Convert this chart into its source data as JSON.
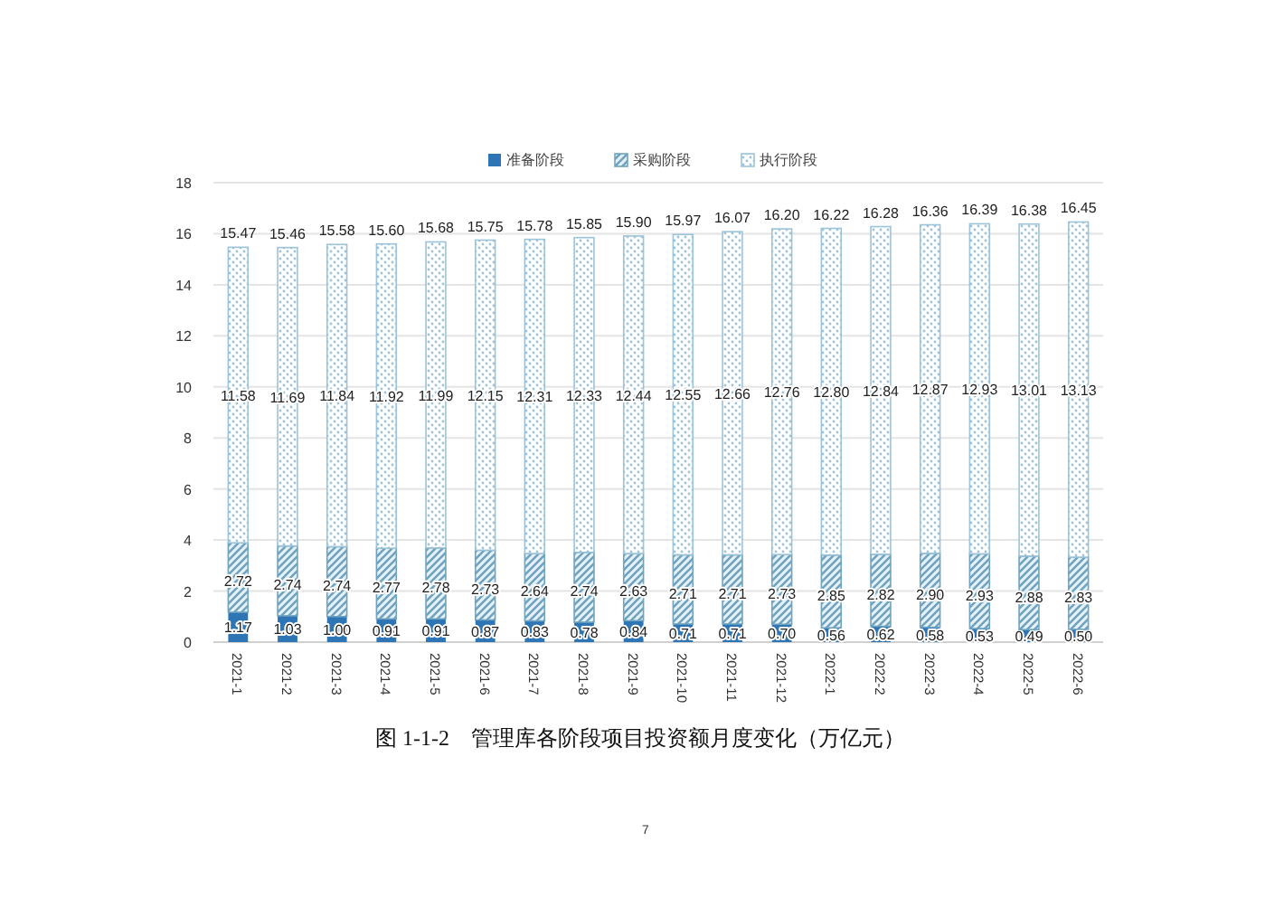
{
  "chart_data": {
    "type": "bar",
    "stacked": true,
    "title": "图 1-1-2　管理库各阶段项目投资额月度变化（万亿元）",
    "categories": [
      "2021-1",
      "2021-2",
      "2021-3",
      "2021-4",
      "2021-5",
      "2021-6",
      "2021-7",
      "2021-8",
      "2021-9",
      "2021-10",
      "2021-11",
      "2021-12",
      "2022-1",
      "2022-2",
      "2022-3",
      "2022-4",
      "2022-5",
      "2022-6"
    ],
    "series": [
      {
        "name": "准备阶段",
        "color": "#2e75b6",
        "values": [
          1.17,
          1.03,
          1.0,
          0.91,
          0.91,
          0.87,
          0.83,
          0.78,
          0.84,
          0.71,
          0.71,
          0.7,
          0.56,
          0.62,
          0.58,
          0.53,
          0.49,
          0.5
        ],
        "value_labels": [
          "1.17",
          "1.03",
          "1.00",
          "0.91",
          "0.91",
          "0.87",
          "0.83",
          "0.78",
          "0.84",
          "0.71",
          "0.71",
          "0.70",
          "0.56",
          "0.62",
          "0.58",
          "0.53",
          "0.49",
          "0.50"
        ]
      },
      {
        "name": "采购阶段",
        "color": "#6fa3bf",
        "values": [
          2.72,
          2.74,
          2.74,
          2.77,
          2.78,
          2.73,
          2.64,
          2.74,
          2.63,
          2.71,
          2.71,
          2.73,
          2.85,
          2.82,
          2.9,
          2.93,
          2.88,
          2.83
        ],
        "value_labels": [
          "2.72",
          "2.74",
          "2.74",
          "2.77",
          "2.78",
          "2.73",
          "2.64",
          "2.74",
          "2.63",
          "2.71",
          "2.71",
          "2.73",
          "2.85",
          "2.82",
          "2.90",
          "2.93",
          "2.88",
          "2.83"
        ]
      },
      {
        "name": "执行阶段",
        "color": "#9cc3d8",
        "values": [
          11.58,
          11.69,
          11.84,
          11.92,
          11.99,
          12.15,
          12.31,
          12.33,
          12.44,
          12.55,
          12.66,
          12.76,
          12.8,
          12.84,
          12.87,
          12.93,
          13.01,
          13.13
        ],
        "value_labels": [
          "11.58",
          "11.69",
          "11.84",
          "11.92",
          "11.99",
          "12.15",
          "12.31",
          "12.33",
          "12.44",
          "12.55",
          "12.66",
          "12.76",
          "12.80",
          "12.84",
          "12.87",
          "12.93",
          "13.01",
          "13.13"
        ]
      }
    ],
    "totals": [
      "15.47",
      "15.46",
      "15.58",
      "15.60",
      "15.68",
      "15.75",
      "15.78",
      "15.85",
      "15.90",
      "15.97",
      "16.07",
      "16.20",
      "16.22",
      "16.28",
      "16.36",
      "16.39",
      "16.38",
      "16.45"
    ],
    "ylim": [
      0,
      18
    ],
    "yticks": [
      0,
      2,
      4,
      6,
      8,
      10,
      12,
      14,
      16,
      18
    ],
    "grid": "y",
    "legend": "top",
    "annotations": [
      "7"
    ]
  }
}
